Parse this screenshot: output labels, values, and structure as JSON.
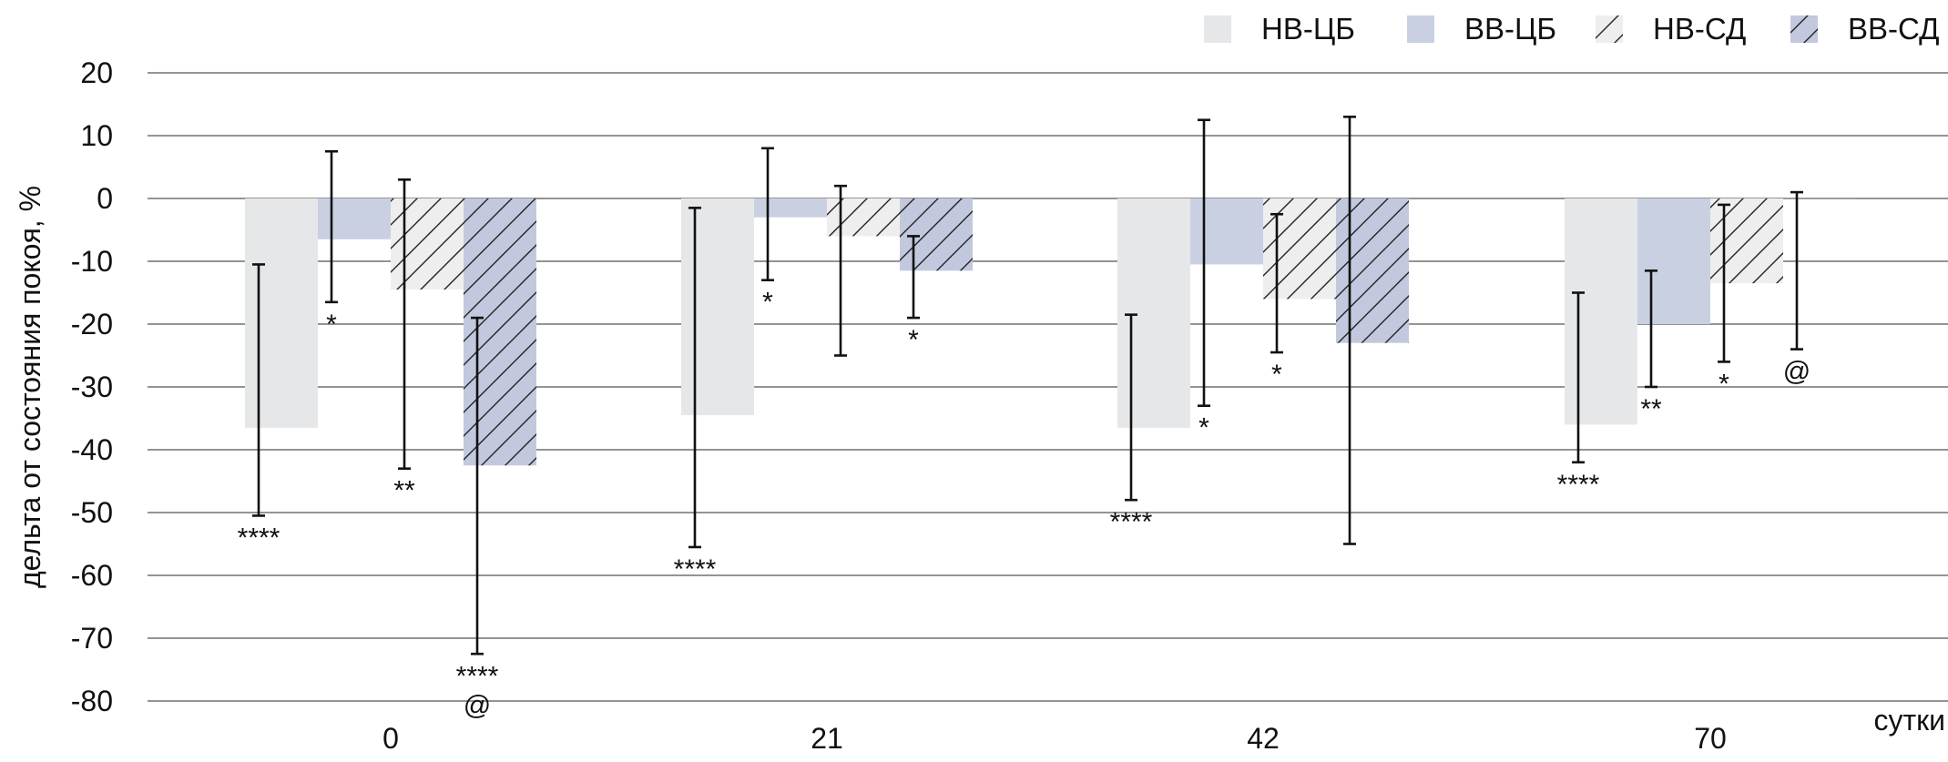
{
  "chart_data": {
    "type": "bar",
    "xlabel": "сутки",
    "ylabel": "дельта от состояния покоя, %",
    "ylim": [
      -80,
      20
    ],
    "yticks": [
      20,
      10,
      0,
      -10,
      -20,
      -30,
      -40,
      -50,
      -60,
      -70,
      -80
    ],
    "grid": true,
    "legend_position": "top-right",
    "categories": [
      "0",
      "21",
      "42",
      "70"
    ],
    "series": [
      {
        "name": "НВ-ЦБ",
        "fill": "solid",
        "color": "#e6e7e9",
        "values": [
          -36.5,
          -34.5,
          -36.5,
          -36
        ],
        "err_low": [
          -50.5,
          -55.5,
          -48,
          -42
        ],
        "err_high": [
          -10.5,
          -1.5,
          -18.5,
          -15
        ],
        "annotations": [
          "****",
          "****",
          "****",
          "****"
        ]
      },
      {
        "name": "ВВ-ЦБ",
        "fill": "solid",
        "color": "#c9d0e2",
        "values": [
          -6.5,
          -3,
          -10.5,
          -20
        ],
        "err_low": [
          -16.5,
          -13,
          -33,
          -30
        ],
        "err_high": [
          7.5,
          8,
          12.5,
          -11.5
        ],
        "annotations": [
          "*",
          "*",
          "*",
          "**"
        ]
      },
      {
        "name": "НВ-СД",
        "fill": "hatched",
        "color": "#eeeeee",
        "values": [
          -14.5,
          -6,
          -16,
          -13.5
        ],
        "err_low": [
          -43,
          -25,
          -24.5,
          -26
        ],
        "err_high": [
          3,
          2,
          -2.5,
          -1
        ],
        "annotations": [
          "**",
          "",
          "*",
          "*"
        ]
      },
      {
        "name": "ВВ-СД",
        "fill": "hatched",
        "color": "#c2c9de",
        "values": [
          -42.5,
          -11.5,
          -23,
          0
        ],
        "err_low": [
          -72.5,
          -19,
          -55,
          -24
        ],
        "err_high": [
          -19,
          -6,
          13,
          1
        ],
        "annotations": [
          "****\n@",
          "*",
          "",
          "@"
        ]
      }
    ]
  }
}
